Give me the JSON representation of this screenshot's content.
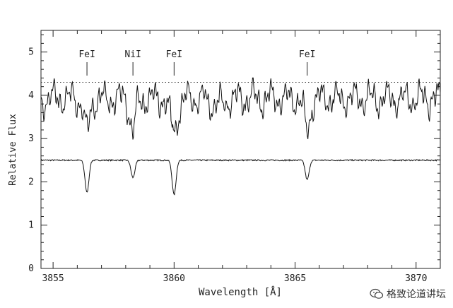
{
  "chart_data": {
    "type": "line",
    "title": "",
    "xlabel": "Wavelength [Å]",
    "ylabel": "Relative Flux",
    "xlim": [
      3854.5,
      3871
    ],
    "ylim": [
      0,
      5.5
    ],
    "xticks": [
      3855,
      3860,
      3865,
      3870
    ],
    "yticks": [
      0,
      1,
      2,
      3,
      4,
      5
    ],
    "reference_line": {
      "y": 4.3,
      "style": "dotted"
    },
    "line_labels": [
      {
        "label": "FeI",
        "x": 3856.4
      },
      {
        "label": "NiI",
        "x": 3858.3
      },
      {
        "label": "FeI",
        "x": 3860.0
      },
      {
        "label": "FeI",
        "x": 3865.5
      }
    ],
    "series": [
      {
        "continuum": 2.5,
        "lines": [
          {
            "x": 3856.4,
            "depth": 0.75,
            "width": 0.08
          },
          {
            "x": 3858.3,
            "depth": 0.4,
            "width": 0.08
          },
          {
            "x": 3860.0,
            "depth": 0.8,
            "width": 0.08
          },
          {
            "x": 3865.5,
            "depth": 0.45,
            "width": 0.08
          }
        ]
      },
      {
        "continuum": 4.2,
        "lines": [
          {
            "x": 3856.4,
            "depth": 0.75,
            "width": 0.12
          },
          {
            "x": 3858.3,
            "depth": 0.7,
            "width": 0.12
          },
          {
            "x": 3860.0,
            "depth": 0.75,
            "width": 0.15
          },
          {
            "x": 3865.5,
            "depth": 0.75,
            "width": 0.12
          }
        ]
      }
    ],
    "grid": false,
    "legend": "none"
  },
  "watermark": {
    "text": "格致论道讲坛",
    "icon": "wechat-icon"
  }
}
